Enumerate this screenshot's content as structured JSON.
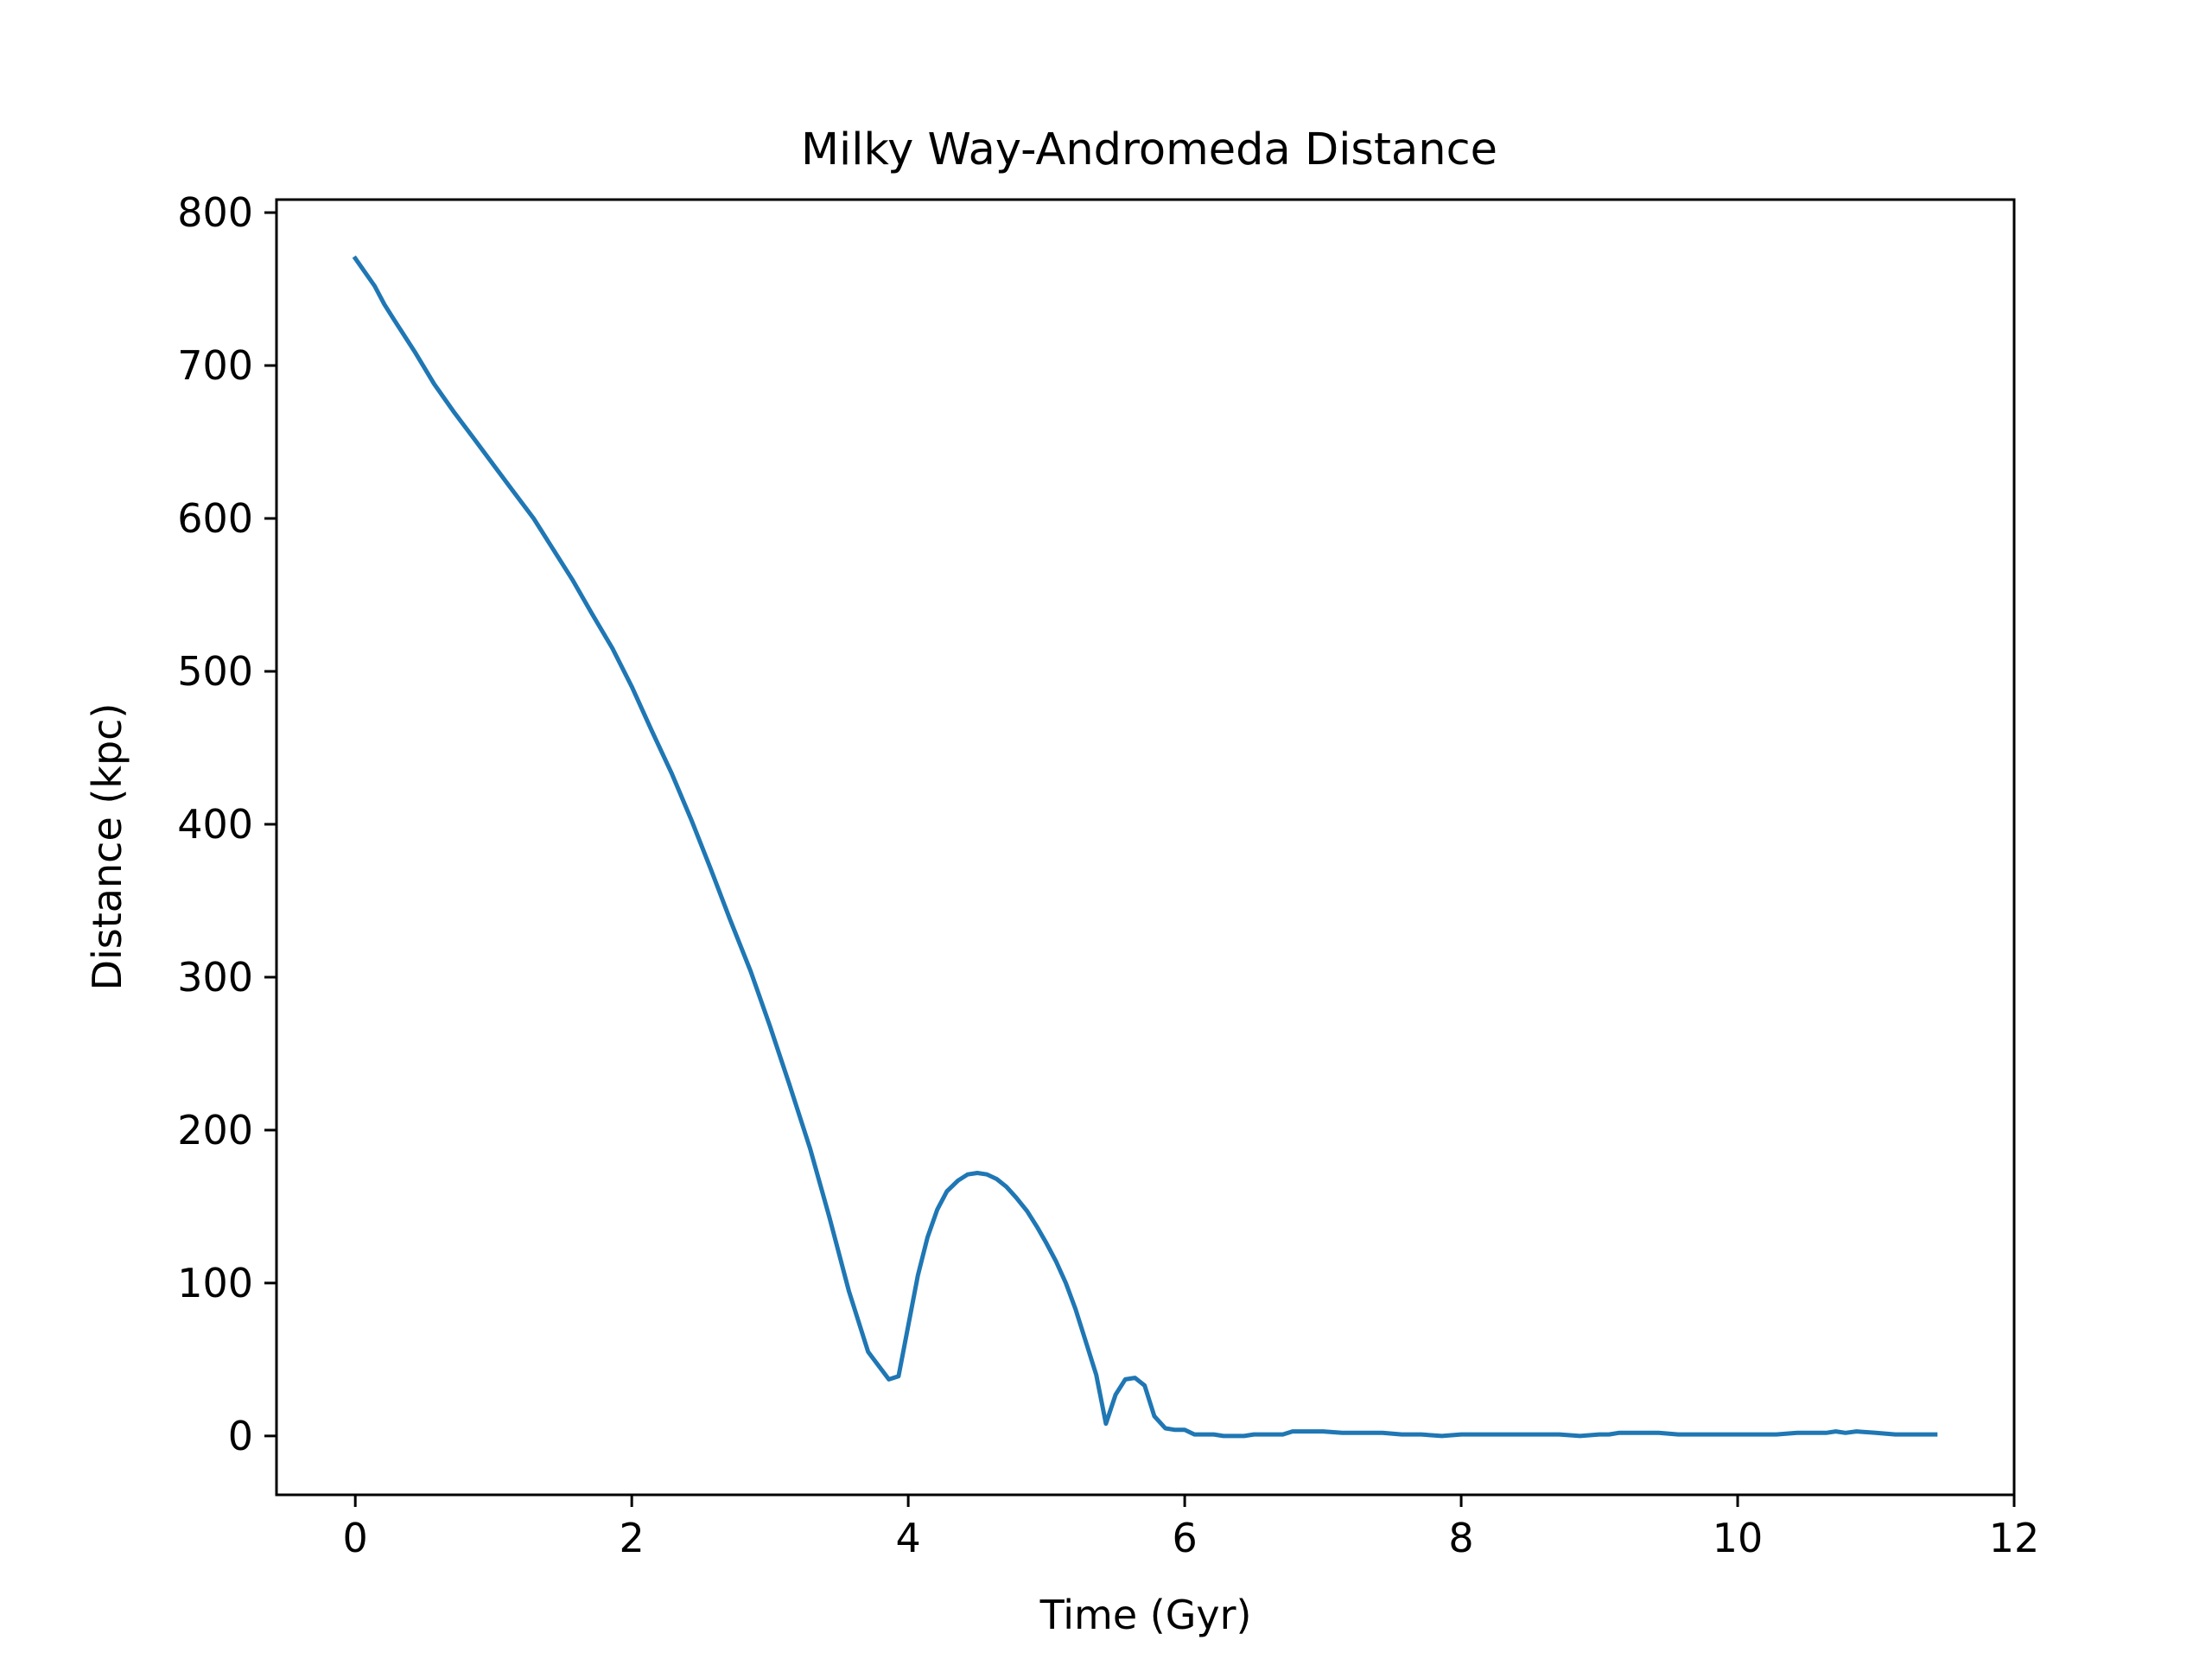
{
  "chart_data": {
    "type": "line",
    "title": "Milky Way-Andromeda Distance",
    "xlabel": "Time (Gyr)",
    "ylabel": "Distance (kpc)",
    "xlim": [
      -0.57,
      12.0
    ],
    "ylim": [
      -38.5,
      808.5
    ],
    "xticks": [
      0,
      2,
      4,
      6,
      8,
      10,
      12
    ],
    "yticks": [
      0,
      100,
      200,
      300,
      400,
      500,
      600,
      700,
      800
    ],
    "grid": false,
    "legend": "none",
    "series": [
      {
        "color": "#1f77b4",
        "x": [
          0.0,
          0.14,
          0.21,
          0.28,
          0.43,
          0.57,
          0.71,
          0.86,
          1.0,
          1.14,
          1.29,
          1.43,
          1.57,
          1.71,
          1.86,
          2.0,
          2.14,
          2.29,
          2.43,
          2.57,
          2.71,
          2.86,
          3.0,
          3.14,
          3.29,
          3.43,
          3.57,
          3.71,
          3.86,
          3.93,
          4.0,
          4.07,
          4.14,
          4.21,
          4.28,
          4.36,
          4.43,
          4.5,
          4.57,
          4.64,
          4.71,
          4.78,
          4.86,
          4.93,
          5.0,
          5.07,
          5.14,
          5.21,
          5.28,
          5.36,
          5.43,
          5.5,
          5.57,
          5.64,
          5.71,
          5.78,
          5.86,
          5.93,
          6.0,
          6.07,
          6.14,
          6.21,
          6.28,
          6.36,
          6.43,
          6.5,
          6.57,
          6.64,
          6.71,
          6.78,
          6.86,
          7.0,
          7.14,
          7.21,
          7.28,
          7.43,
          7.57,
          7.71,
          7.86,
          8.0,
          8.14,
          8.28,
          8.36,
          8.5,
          8.71,
          8.86,
          9.0,
          9.07,
          9.14,
          9.21,
          9.28,
          9.43,
          9.57,
          9.64,
          9.71,
          9.86,
          10.0,
          10.14,
          10.28,
          10.43,
          10.57,
          10.64,
          10.71,
          10.78,
          10.86,
          11.0,
          11.14,
          11.28,
          11.36,
          11.43
        ],
        "values": [
          770,
          752,
          740,
          730,
          709,
          688,
          670,
          652,
          635,
          618,
          600,
          580,
          560,
          538,
          515,
          490,
          462,
          433,
          403,
          371,
          338,
          304,
          268,
          230,
          188,
          143,
          95,
          55,
          37,
          39,
          72,
          105,
          130,
          148,
          160,
          167,
          171,
          172,
          171,
          168,
          163,
          156,
          147,
          137,
          126,
          114,
          100,
          83,
          63,
          40,
          8,
          27,
          37,
          38,
          33,
          13,
          5,
          4,
          4,
          1,
          1,
          1,
          0,
          0,
          0,
          1,
          1,
          1,
          1,
          3,
          3,
          3,
          2,
          2,
          2,
          2,
          1,
          1,
          0,
          1,
          1,
          1,
          1,
          1,
          1,
          0,
          1,
          1,
          2,
          2,
          2,
          2,
          1,
          1,
          1,
          1,
          1,
          1,
          1,
          2,
          2,
          2,
          3,
          2,
          3,
          2,
          1,
          1,
          1,
          1
        ]
      }
    ]
  }
}
